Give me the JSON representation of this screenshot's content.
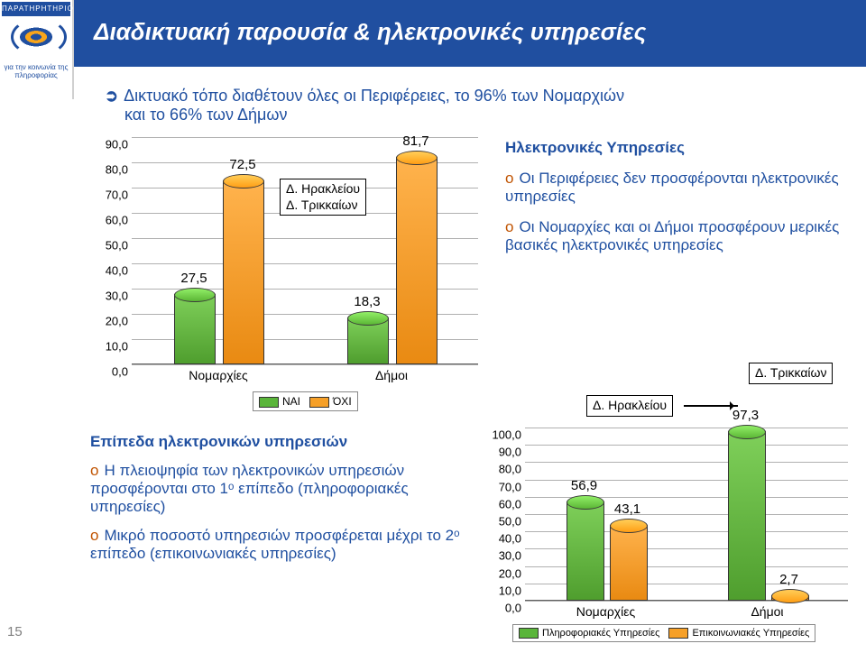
{
  "header": {
    "title": "Διαδικτυακή παρουσία & ηλεκτρονικές υπηρεσίες",
    "logo_top": "ΠΑΡΑΤΗΡΗΤΗΡΙΟ",
    "logo_bottom": "για την κοινωνία\nτης πληροφορίας"
  },
  "intro": {
    "line1": "Δικτυακό τόπο διαθέτουν όλες οι Περιφέρειες, το 96% των Νομαρχιών",
    "line2": "και το 66% των Δήμων"
  },
  "chart1": {
    "type": "bar",
    "ylim": [
      0,
      90
    ],
    "ytick_step": 10,
    "ytick_decimals": 1,
    "categories": [
      "Νομαρχίες",
      "Δήμοι"
    ],
    "bars": [
      {
        "cat": 0,
        "series": "ΝΑΙ",
        "value": 27.5,
        "label": "27,5"
      },
      {
        "cat": 0,
        "series": "ΌΧΙ",
        "value": 72.5,
        "label": "72,5"
      },
      {
        "cat": 1,
        "series": "ΝΑΙ",
        "value": 18.3,
        "label": "18,3"
      },
      {
        "cat": 1,
        "series": "ΌΧΙ",
        "value": 81.7,
        "label": "81,7"
      }
    ],
    "legend": [
      {
        "label": "ΝΑΙ",
        "swatch": "green"
      },
      {
        "label": "ΌΧΙ",
        "swatch": "orange"
      }
    ],
    "callout": {
      "line1": "Δ. Ηρακλείου",
      "line2": "Δ. Τρικκαίων"
    },
    "colors": {
      "ΝΑΙ": "#5ab53a",
      "ΌΧΙ": "#f6a028"
    }
  },
  "right_text": {
    "heading": "Ηλεκτρονικές Υπηρεσίες",
    "p1": "Οι Περιφέρειες δεν προσφέρονται ηλεκτρονικές υπηρεσίες",
    "p2": "Οι Νομαρχίες και οι Δήμοι προσφέρουν μερικές βασικές ηλεκτρονικές υπηρεσίες"
  },
  "bl_text": {
    "heading": "Επίπεδα ηλεκτρονικών υπηρεσιών",
    "p1": "Η πλειοψηφία των ηλεκτρονικών υπηρεσιών προσφέρονται στο 1ᵒ επίπεδο (πληροφοριακές υπηρεσίες)",
    "p2": "Μικρό ποσοστό υπηρεσιών προσφέρεται μέχρι το 2ᵒ επίπεδο (επικοινωνιακές υπηρεσίες)"
  },
  "chart2": {
    "type": "bar",
    "ylim": [
      0,
      100
    ],
    "ytick_step": 10,
    "ytick_decimals": 1,
    "categories": [
      "Νομαρχίες",
      "Δήμοι"
    ],
    "bars": [
      {
        "cat": 0,
        "series": "Πληροφοριακές Υπηρεσίες",
        "value": 56.9,
        "label": "56,9"
      },
      {
        "cat": 0,
        "series": "Επικοινωνιακές Υπηρεσίες",
        "value": 43.1,
        "label": "43,1"
      },
      {
        "cat": 1,
        "series": "Πληροφοριακές Υπηρεσίες",
        "value": 97.3,
        "label": "97,3"
      },
      {
        "cat": 1,
        "series": "Επικοινωνιακές Υπηρεσίες",
        "value": 2.7,
        "label": "2,7"
      }
    ],
    "legend": [
      {
        "label": "Πληροφοριακές Υπηρεσίες",
        "swatch": "green"
      },
      {
        "label": "Επικοινωνιακές Υπηρεσίες",
        "swatch": "orange"
      }
    ],
    "callout1": "Δ. Ηρακλείου",
    "callout2": "Δ. Τρικκαίων",
    "colors": {
      "Πληροφοριακές Υπηρεσίες": "#5ab53a",
      "Επικοινωνιακές Υπηρεσίες": "#f6a028"
    }
  },
  "page_number": "15"
}
